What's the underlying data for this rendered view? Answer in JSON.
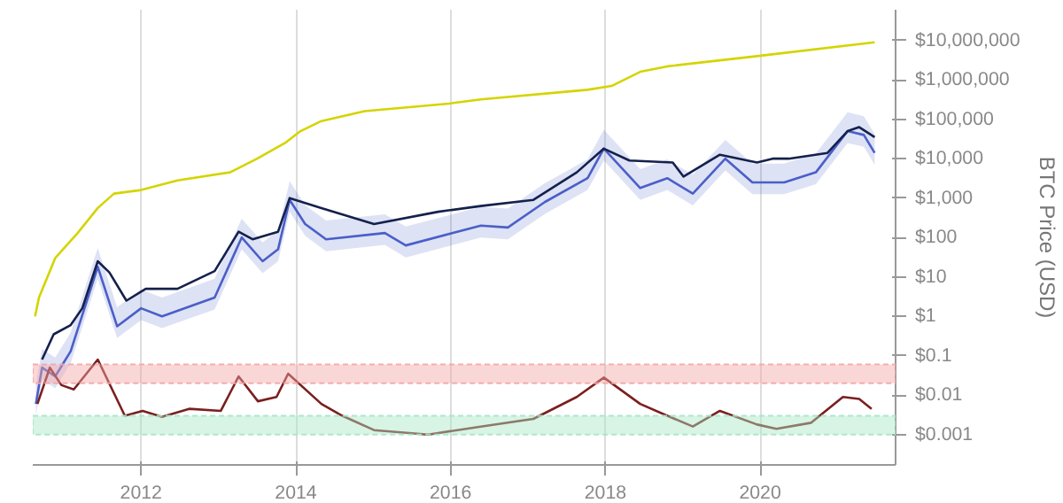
{
  "chart_data": {
    "type": "line",
    "ylabel": "BTC Price (USD)",
    "log": "y",
    "grid": "x",
    "marker": "none",
    "line_style": "solid",
    "xlim": [
      2010.6,
      2021.75
    ],
    "xticks": [
      {
        "value": 2012,
        "label": "2012"
      },
      {
        "value": 2014,
        "label": "2014"
      },
      {
        "value": 2016,
        "label": "2016"
      },
      {
        "value": 2018,
        "label": "2018"
      },
      {
        "value": 2020,
        "label": "2020"
      }
    ],
    "ylim": [
      0.00017,
      60000000
    ],
    "yticks": [
      {
        "value": 0.001,
        "label": "$0.001"
      },
      {
        "value": 0.01,
        "label": "$0.01"
      },
      {
        "value": 0.1,
        "label": "$0.1"
      },
      {
        "value": 1,
        "label": "$1"
      },
      {
        "value": 10,
        "label": "$10"
      },
      {
        "value": 100,
        "label": "$100"
      },
      {
        "value": 1000,
        "label": "$1,000"
      },
      {
        "value": 10000,
        "label": "$10,000"
      },
      {
        "value": 100000,
        "label": "$100,000"
      },
      {
        "value": 1000000,
        "label": "$1,000,000"
      },
      {
        "value": 10000000,
        "label": "$10,000,000"
      }
    ],
    "bands": [
      {
        "axis": "y",
        "from": 0.02,
        "to": 0.06,
        "color": "#f4a6a6"
      },
      {
        "axis": "y",
        "from": 0.001,
        "to": 0.003,
        "color": "#a6e6c6"
      }
    ],
    "series": [
      {
        "color": "#d4d400",
        "x": [
          2010.63,
          2010.68,
          2010.89,
          2011.18,
          2011.44,
          2011.65,
          2012.0,
          2012.47,
          2013.15,
          2013.5,
          2013.86,
          2014.06,
          2014.33,
          2014.89,
          2015.98,
          2016.39,
          2017.77,
          2018.08,
          2018.45,
          2018.8,
          2019.96,
          2021.48
        ],
        "values": [
          1,
          3,
          30,
          130,
          560,
          1300,
          1600,
          2800,
          4500,
          10000,
          25000,
          50000,
          90000,
          160000,
          250000,
          320000,
          560000,
          700000,
          1600000,
          2200000,
          4000000,
          9000000
        ]
      },
      {
        "color": "#4a5fc8",
        "x": [
          2010.64,
          2010.72,
          2010.89,
          2011.09,
          2011.44,
          2011.69,
          2012.0,
          2012.27,
          2012.95,
          2013.3,
          2013.57,
          2013.77,
          2013.92,
          2014.12,
          2014.39,
          2015.15,
          2015.42,
          2016.39,
          2016.74,
          2017.22,
          2017.77,
          2017.98,
          2018.45,
          2018.8,
          2019.13,
          2019.55,
          2019.9,
          2020.31,
          2020.72,
          2021.13,
          2021.34,
          2021.48
        ],
        "values": [
          0.006,
          0.05,
          0.03,
          0.13,
          18,
          0.56,
          1.6,
          1,
          3,
          100,
          25,
          50,
          900,
          220,
          90,
          130,
          63,
          200,
          180,
          800,
          3200,
          18000,
          1800,
          3200,
          1300,
          10000,
          2500,
          2500,
          4500,
          50000,
          40000,
          14000
        ],
        "lower": [
          0.003,
          0.025,
          0.015,
          0.065,
          9,
          0.28,
          0.8,
          0.5,
          1.5,
          50,
          12.5,
          25,
          450,
          110,
          45,
          65,
          31,
          100,
          90,
          400,
          1600,
          9000,
          900,
          1600,
          650,
          5000,
          1250,
          1250,
          2250,
          25000,
          20000,
          7000
        ],
        "upper": [
          0.018,
          0.15,
          0.09,
          0.39,
          54,
          1.7,
          4.8,
          3,
          9,
          300,
          75,
          150,
          2700,
          660,
          270,
          390,
          190,
          600,
          540,
          2400,
          9600,
          54000,
          5400,
          9600,
          3900,
          30000,
          7500,
          7500,
          13500,
          150000,
          120000,
          42000
        ]
      },
      {
        "color": "#14214d",
        "x": [
          2010.72,
          2010.87,
          2011.09,
          2011.24,
          2011.44,
          2011.59,
          2011.81,
          2012.06,
          2012.47,
          2012.95,
          2013.26,
          2013.44,
          2013.77,
          2013.92,
          2014.33,
          2015.01,
          2015.84,
          2016.39,
          2017.07,
          2017.63,
          2017.98,
          2018.31,
          2018.87,
          2019.01,
          2019.48,
          2019.96,
          2020.16,
          2020.37,
          2020.87,
          2021.13,
          2021.28,
          2021.48
        ],
        "values": [
          0.08,
          0.35,
          0.6,
          1.6,
          25,
          13,
          2.5,
          5,
          5,
          14,
          140,
          90,
          140,
          1000,
          560,
          220,
          450,
          630,
          900,
          4500,
          18000,
          9000,
          8000,
          3500,
          12600,
          8000,
          10000,
          10000,
          14000,
          50000,
          63000,
          35000
        ]
      },
      {
        "color": "#7a1f1f",
        "x": [
          2010.66,
          2010.82,
          2010.97,
          2011.13,
          2011.44,
          2011.79,
          2012.02,
          2012.27,
          2012.62,
          2013.03,
          2013.26,
          2013.51,
          2013.75,
          2013.9,
          2014.33,
          2014.6,
          2015.01,
          2015.71,
          2016.39,
          2017.07,
          2017.63,
          2017.98,
          2018.45,
          2018.8,
          2019.13,
          2019.48,
          2019.96,
          2020.21,
          2020.66,
          2021.07,
          2021.28,
          2021.44
        ],
        "values": [
          0.006,
          0.05,
          0.018,
          0.014,
          0.08,
          0.003,
          0.004,
          0.0028,
          0.0045,
          0.004,
          0.03,
          0.007,
          0.009,
          0.035,
          0.006,
          0.003,
          0.0013,
          0.001,
          0.0016,
          0.0025,
          0.009,
          0.028,
          0.006,
          0.003,
          0.0016,
          0.004,
          0.0018,
          0.0014,
          0.002,
          0.009,
          0.008,
          0.0045
        ]
      }
    ]
  }
}
